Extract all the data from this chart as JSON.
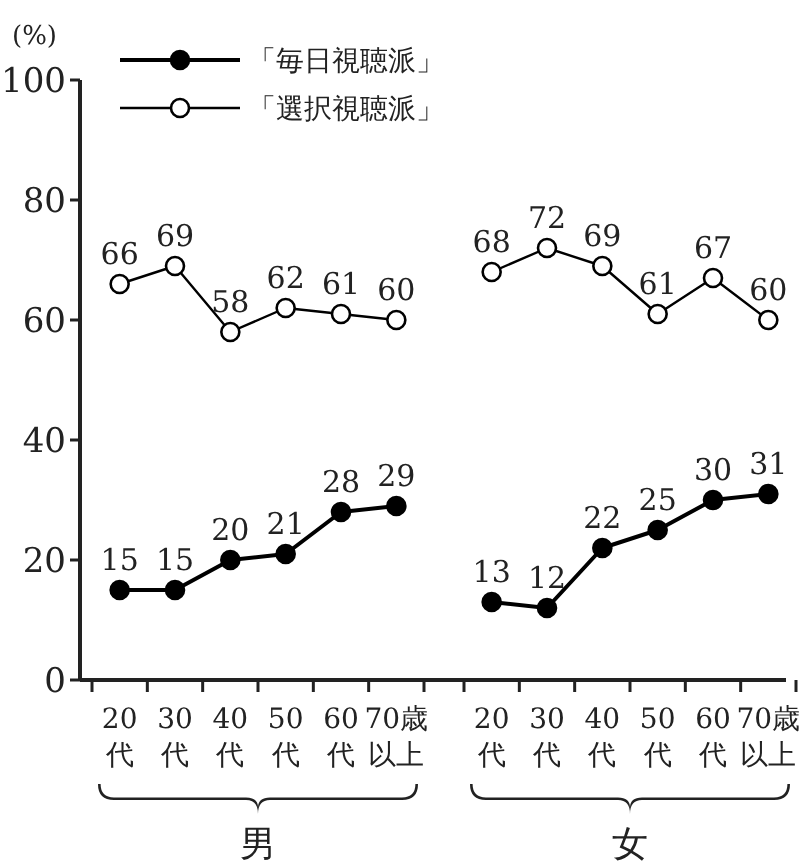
{
  "chart_data": [
    {
      "type": "line",
      "ylabel": "(%)",
      "xlabel": "男",
      "categories": [
        "20代",
        "30代",
        "40代",
        "50代",
        "60代",
        "70歳以上"
      ],
      "ylim": [
        0,
        100
      ],
      "yticks": [
        0,
        20,
        40,
        60,
        80,
        100
      ],
      "legend": "top left",
      "data_labels": true,
      "marker": "circle",
      "series": [
        {
          "name": "「毎日視聴派」",
          "color": "#000000",
          "values": [
            15,
            15,
            20,
            21,
            28,
            29
          ]
        },
        {
          "name": "「選択視聴派」",
          "color": "#000000",
          "values": [
            66,
            69,
            58,
            62,
            61,
            60
          ]
        }
      ]
    },
    {
      "type": "line",
      "xlabel": "女",
      "categories": [
        "20代",
        "30代",
        "40代",
        "50代",
        "60代",
        "70歳以上"
      ],
      "ylim": [
        0,
        100
      ],
      "tick_labels": "x",
      "data_labels": true,
      "marker": "circle",
      "series": [
        {
          "color": "#000000",
          "values": [
            13,
            12,
            22,
            25,
            30,
            31
          ]
        },
        {
          "color": "#000000",
          "values": [
            68,
            72,
            69,
            61,
            67,
            60
          ]
        }
      ]
    }
  ]
}
